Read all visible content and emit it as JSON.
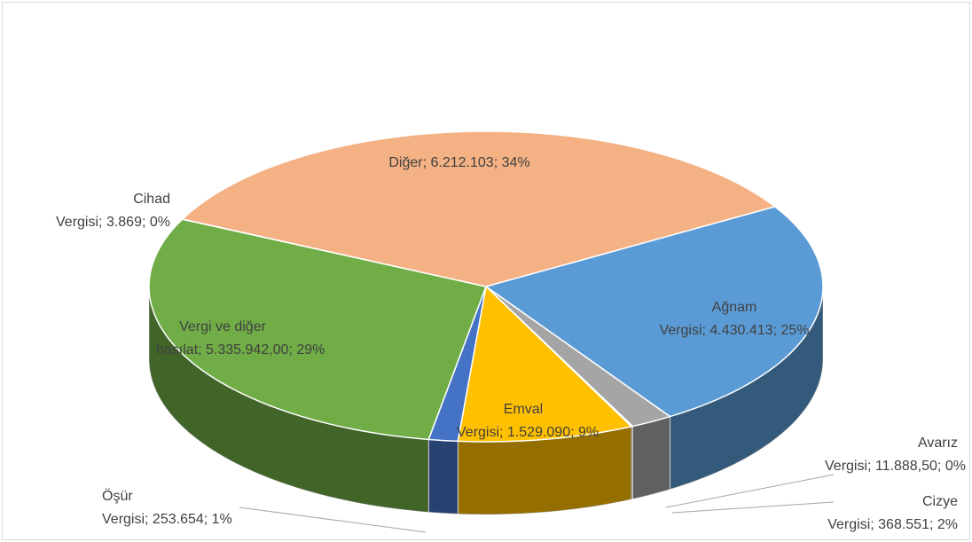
{
  "chart_data": {
    "type": "pie3d",
    "categories": [
      "Ağnam Vergisi",
      "Cizye Vergisi",
      "Avarız Vergisi",
      "Emval Vergisi",
      "Öşür Vergisi",
      "Vergi ve diğer hasılat",
      "Cihad Vergisi",
      "Diğer"
    ],
    "values": [
      4430413,
      368551,
      11888.5,
      1529090,
      253654,
      5335942,
      3869,
      6212103
    ],
    "value_labels": [
      "4.430.413",
      "368.551",
      "11.888,50",
      "1.529.090",
      "253.654",
      "5.335.942,00",
      "3.869",
      "6.212.103"
    ],
    "percent_labels": [
      "25%",
      "2%",
      "0%",
      "9%",
      "1%",
      "29%",
      "0%",
      "34%"
    ],
    "label_separator": "; ",
    "colors": [
      "#5b9bd5",
      "#a5a5a5",
      "#9e480e",
      "#ffc000",
      "#4472c4",
      "#70ad47",
      "#264478",
      "#f4b183"
    ]
  }
}
